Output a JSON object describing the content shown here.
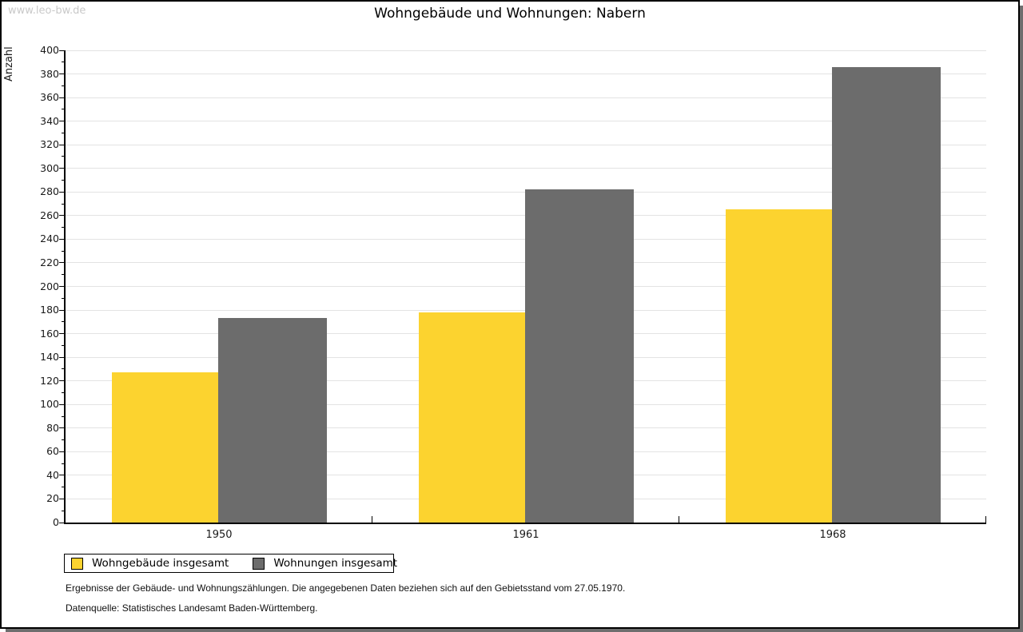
{
  "watermark": "www.leo-bw.de",
  "chart_data": {
    "type": "bar",
    "title": "Wohngebäude und Wohnungen: Nabern",
    "ylabel": "Anzahl",
    "ylim": [
      0,
      400
    ],
    "ytick_step": 20,
    "ytick_minor_step": 10,
    "grid": true,
    "legend_position": "bottom-left",
    "categories": [
      "1950",
      "1961",
      "1968"
    ],
    "series": [
      {
        "name": "Wohngebäude insgesamt",
        "color": "#fcd32f",
        "values": [
          127,
          178,
          265
        ]
      },
      {
        "name": "Wohnungen insgesamt",
        "color": "#6c6c6c",
        "values": [
          173,
          282,
          386
        ]
      }
    ]
  },
  "footnotes": [
    "Ergebnisse der Gebäude- und Wohnungszählungen. Die angegebenen Daten beziehen sich auf den Gebietsstand vom 27.05.1970.",
    "Datenquelle: Statistisches Landesamt Baden-Württemberg."
  ],
  "colors": {
    "grid": "#e3e3e3",
    "axis": "#000000",
    "watermark": "#c9c9c9",
    "shadow": "#6e6e6e"
  }
}
